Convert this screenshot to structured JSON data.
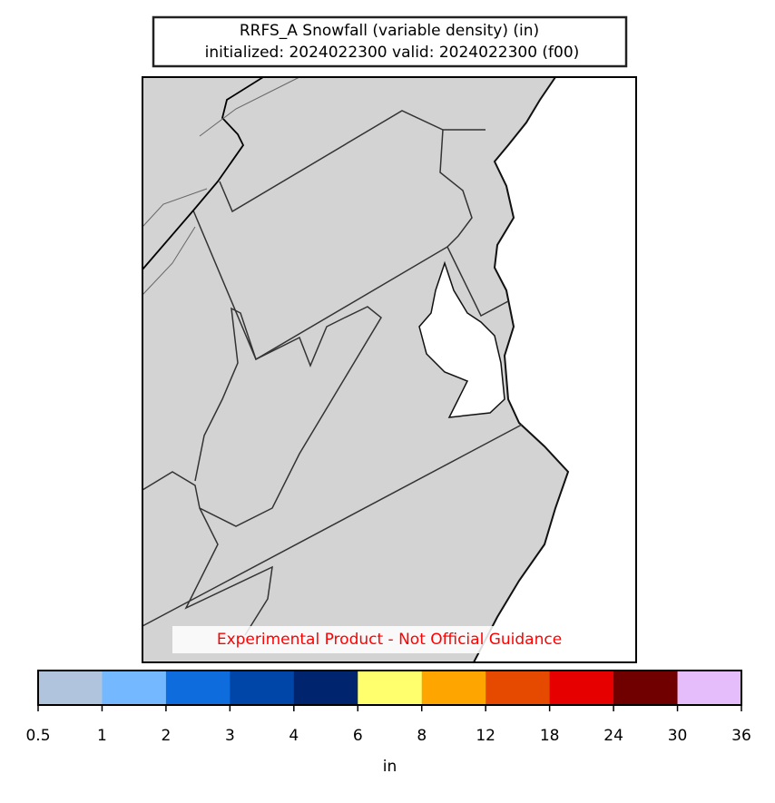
{
  "map": {
    "title_line1": "RRFS_A Snowfall (variable density) (in)",
    "title_line2": "initialized: 2024022300 valid: 2024022300 (f00)",
    "annotation": "Experimental Product - Not Official Guidance",
    "colorbar": {
      "label": "in",
      "boundaries": [
        0.5,
        1,
        2,
        3,
        4,
        6,
        8,
        12,
        18,
        24,
        30,
        36
      ],
      "colors": [
        "#b0c4de",
        "#74b9ff",
        "#0f6cdd",
        "#0046a8",
        "#00246e",
        "#ffff6e",
        "#ffa500",
        "#e64a00",
        "#e60000",
        "#700000",
        "#e5bdfb"
      ]
    }
  }
}
